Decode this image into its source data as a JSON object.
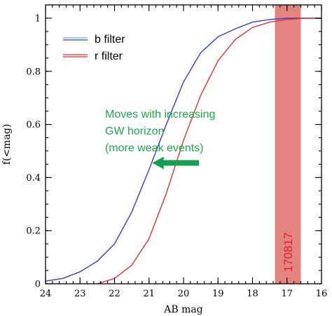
{
  "chart_data": {
    "type": "line",
    "title": "",
    "xlabel": "AB mag",
    "ylabel": "f(<mag)",
    "xlim": [
      24,
      16
    ],
    "ylim": [
      0,
      1.05
    ],
    "x_reversed": true,
    "x_ticks": [
      24,
      23,
      22,
      21,
      20,
      19,
      18,
      17,
      16
    ],
    "y_ticks": [
      0,
      0.2,
      0.4,
      0.6,
      0.8,
      1
    ],
    "y_tick_labels": [
      "0",
      "0.2",
      "0.4",
      "0.6",
      "0.8",
      "1"
    ],
    "grid": false,
    "legend_position": "top-left",
    "series": [
      {
        "name": "b filter",
        "color": "#3a3acf",
        "legend_color": "#5aaee8",
        "x": [
          24,
          23.5,
          23,
          22.5,
          22,
          21.5,
          21,
          20.5,
          20,
          19.5,
          19,
          18.5,
          18,
          17.5,
          17,
          16.5,
          16
        ],
        "y": [
          0.01,
          0.02,
          0.045,
          0.085,
          0.15,
          0.27,
          0.43,
          0.6,
          0.76,
          0.87,
          0.93,
          0.96,
          0.985,
          0.995,
          1.0,
          1.0,
          1.0
        ]
      },
      {
        "name": "r filter",
        "color": "#e03030",
        "legend_color": "#e03030",
        "x": [
          22.5,
          22,
          21.5,
          21,
          20.5,
          20,
          19.5,
          19,
          18.5,
          18,
          17.5,
          17,
          16.5,
          16
        ],
        "y": [
          0.0,
          0.02,
          0.07,
          0.17,
          0.34,
          0.54,
          0.71,
          0.84,
          0.92,
          0.965,
          0.985,
          0.995,
          1.0,
          1.0
        ]
      }
    ],
    "bands": [
      {
        "x_from": 17.35,
        "x_to": 16.6,
        "color": "#d9534f",
        "label": "170817"
      }
    ],
    "annotations": [
      {
        "lines": [
          "Moves with increasing",
          "GW horizon",
          "(more weak events)"
        ],
        "color": "#1bab4a"
      }
    ],
    "arrow": {
      "color": "#13a050",
      "from_x": 19.55,
      "to_x": 20.9,
      "y": 0.455
    }
  }
}
